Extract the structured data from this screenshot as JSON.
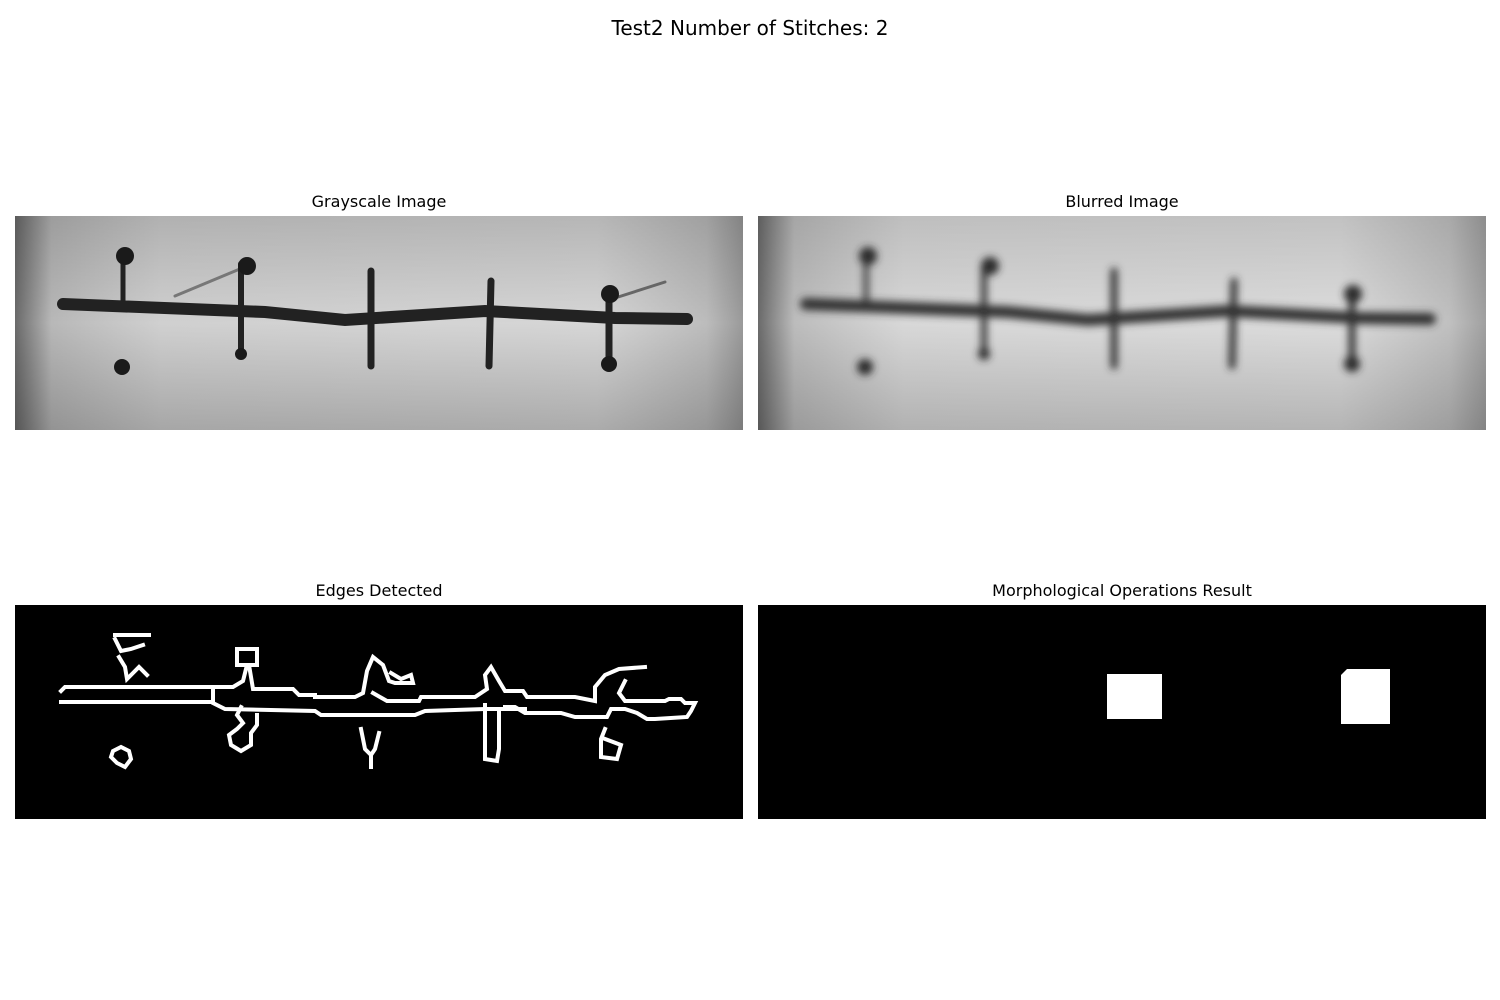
{
  "figure": {
    "title": "Test2 Number of Stitches: 2"
  },
  "panels": [
    {
      "title": "Grayscale Image"
    },
    {
      "title": "Blurred Image"
    },
    {
      "title": "Edges Detected"
    },
    {
      "title": "Morphological Operations Result"
    }
  ]
}
